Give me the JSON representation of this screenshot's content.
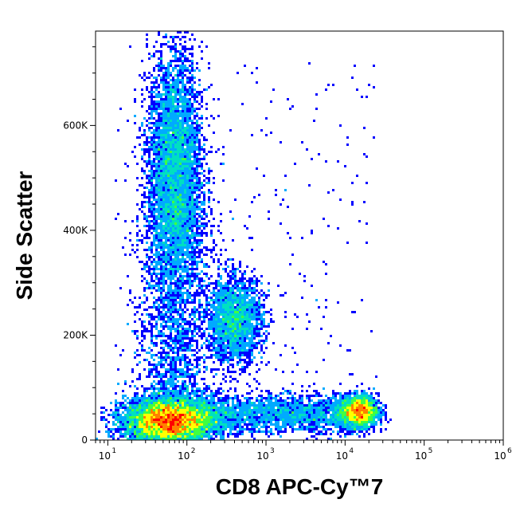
{
  "chart_data": {
    "type": "scatter",
    "title": "",
    "xlabel": "CD8 APC-Cy™7",
    "ylabel": "Side Scatter",
    "x_scale": "log",
    "xlim": [
      7,
      1000000
    ],
    "ylim": [
      0,
      780000
    ],
    "x_ticks": [
      {
        "base": "10",
        "exp": "1",
        "value": 10
      },
      {
        "base": "10",
        "exp": "2",
        "value": 100
      },
      {
        "base": "10",
        "exp": "3",
        "value": 1000
      },
      {
        "base": "10",
        "exp": "4",
        "value": 10000
      },
      {
        "base": "10",
        "exp": "5",
        "value": 100000
      },
      {
        "base": "10",
        "exp": "6",
        "value": 1000000
      }
    ],
    "y_ticks": [
      {
        "label": "0",
        "value": 0
      },
      {
        "label": "200K",
        "value": 200000
      },
      {
        "label": "400K",
        "value": 400000
      },
      {
        "label": "600K",
        "value": 600000
      }
    ],
    "populations": [
      {
        "name": "",
        "x_center": 60,
        "y_center": 35000,
        "x_spread_decades": 0.28,
        "y_spread": 22000,
        "relative_density": 1.0
      },
      {
        "name": "",
        "x_center": 70,
        "y_center": 520000,
        "x_spread_decades": 0.17,
        "y_spread": 110000,
        "relative_density": 0.55
      },
      {
        "name": "",
        "x_center": 400,
        "y_center": 230000,
        "x_spread_decades": 0.18,
        "y_spread": 40000,
        "relative_density": 0.25
      },
      {
        "name": "",
        "x_center": 15000,
        "y_center": 55000,
        "x_spread_decades": 0.12,
        "y_spread": 15000,
        "relative_density": 0.25
      }
    ],
    "colormap": [
      "#0000ff",
      "#00aaff",
      "#00e0c0",
      "#40ff40",
      "#ffff00",
      "#ff8000",
      "#ff0000"
    ],
    "grid": false
  }
}
